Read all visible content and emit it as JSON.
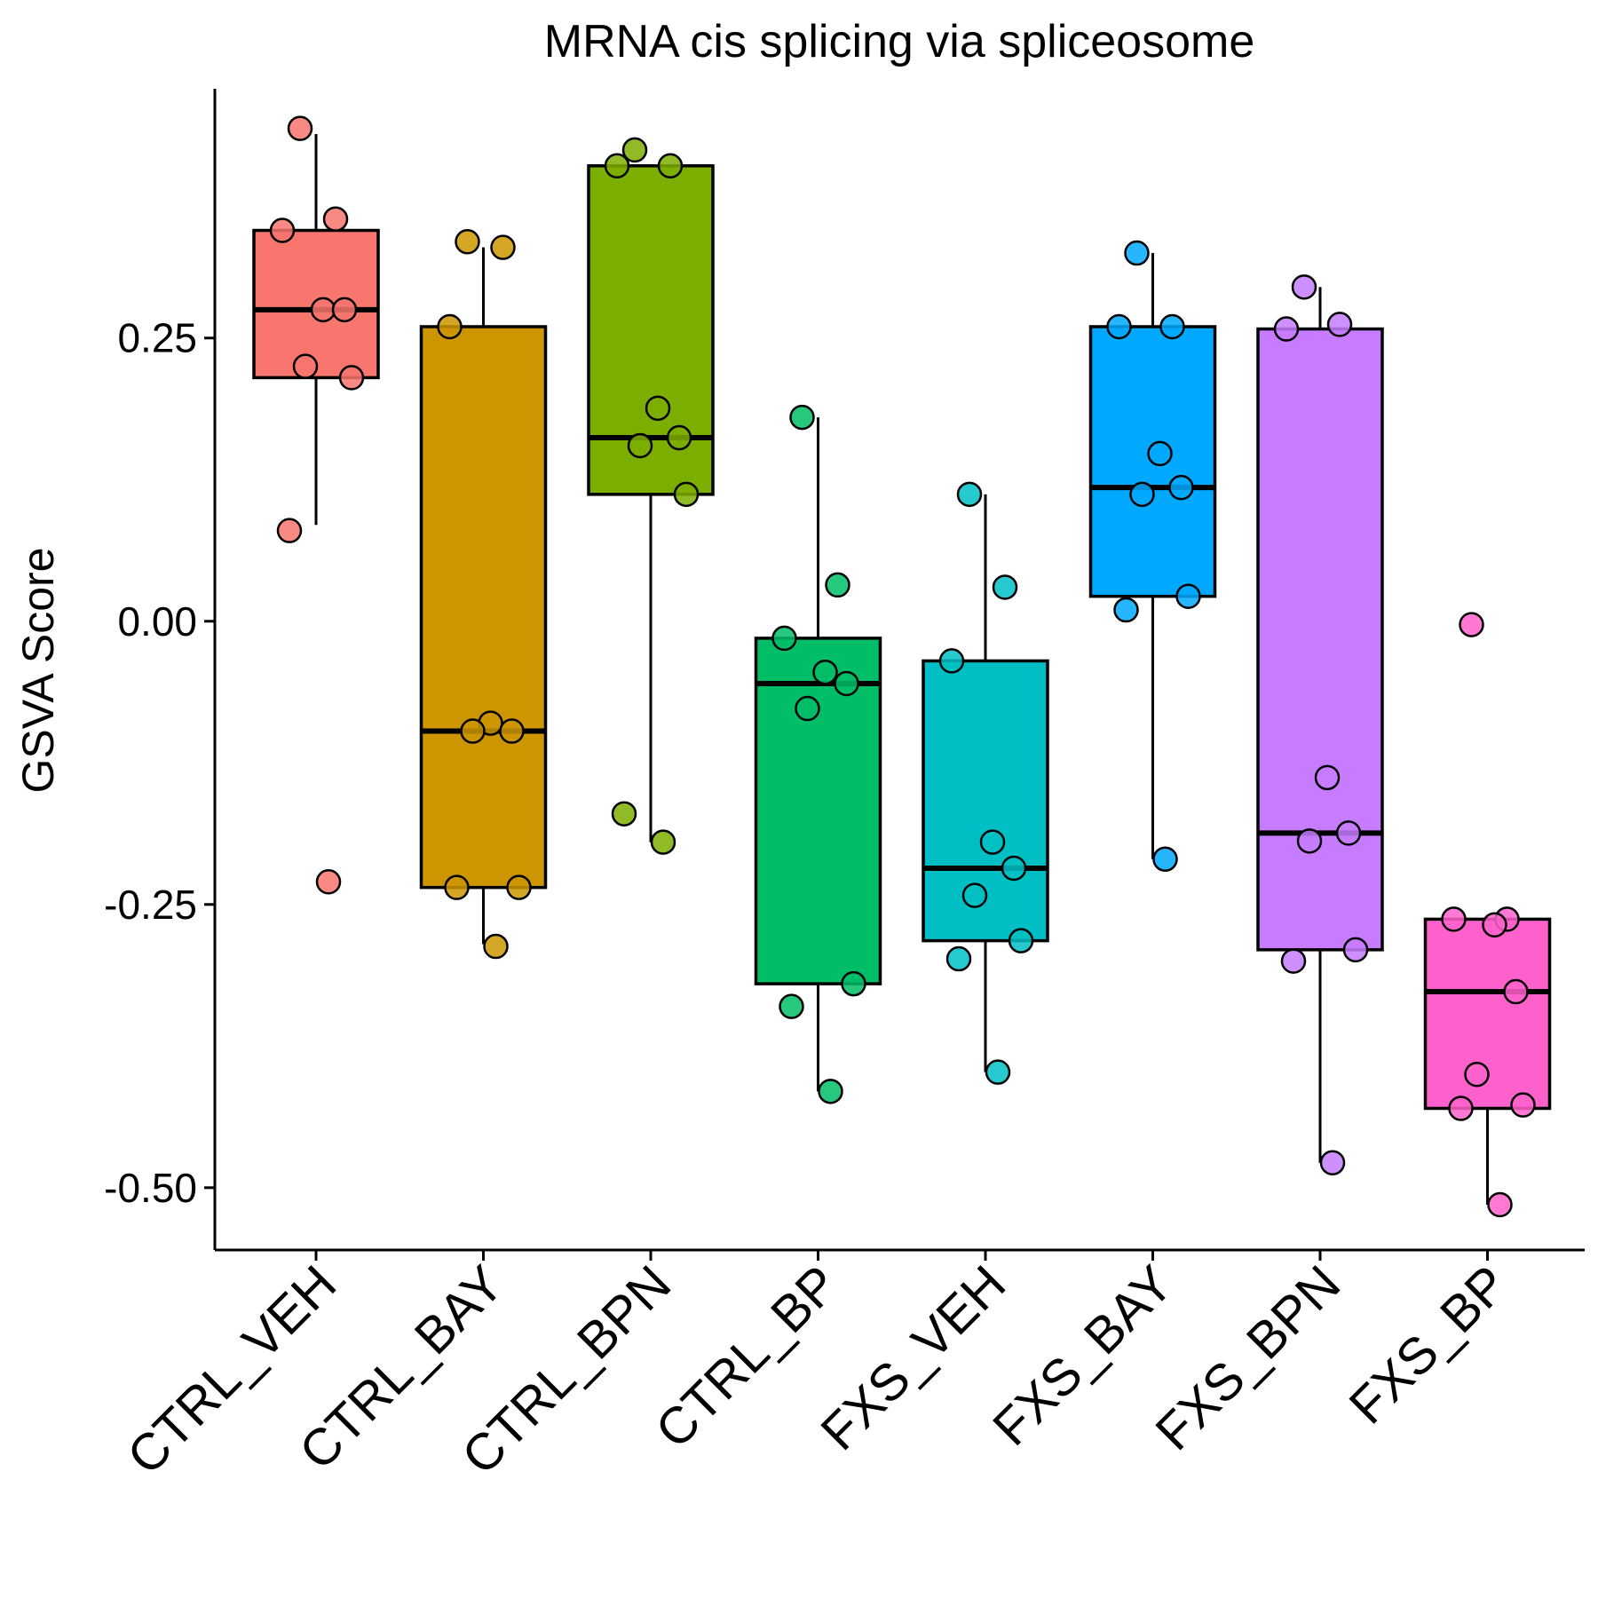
{
  "chart_data": {
    "type": "box",
    "title": "MRNA cis splicing via spliceosome",
    "xlabel": "",
    "ylabel": "GSVA Score",
    "ylim": [
      -0.555,
      0.47
    ],
    "yticks": [
      0.25,
      0.0,
      -0.25,
      -0.5
    ],
    "ytick_labels": [
      "0.25",
      "0.00",
      "-0.25",
      "-0.50"
    ],
    "legend": "none",
    "grid": false,
    "categories": [
      "CTRL_VEH",
      "CTRL_BAY",
      "CTRL_BPN",
      "CTRL_BP",
      "FXS_VEH",
      "FXS_BAY",
      "FXS_BPN",
      "FXS_BP"
    ],
    "colors": [
      "#F8766D",
      "#CD9600",
      "#7CAE00",
      "#00BE67",
      "#00BFC4",
      "#00A9FF",
      "#C77CFF",
      "#FF61CC"
    ],
    "series": [
      {
        "name": "CTRL_VEH",
        "box": {
          "whisker_low": 0.085,
          "q1": 0.215,
          "median": 0.275,
          "q3": 0.345,
          "whisker_high": 0.43
        },
        "points": [
          0.435,
          0.355,
          0.345,
          0.275,
          0.275,
          0.225,
          0.215,
          0.08,
          -0.23
        ]
      },
      {
        "name": "CTRL_BAY",
        "box": {
          "whisker_low": -0.285,
          "q1": -0.235,
          "median": -0.097,
          "q3": 0.26,
          "whisker_high": 0.33
        },
        "points": [
          0.335,
          0.33,
          0.26,
          -0.09,
          -0.097,
          -0.097,
          -0.235,
          -0.235,
          -0.287
        ]
      },
      {
        "name": "CTRL_BPN",
        "box": {
          "whisker_low": -0.195,
          "q1": 0.112,
          "median": 0.162,
          "q3": 0.402,
          "whisker_high": 0.402
        },
        "points": [
          0.416,
          0.402,
          0.402,
          0.188,
          0.162,
          0.155,
          0.112,
          -0.17,
          -0.195
        ]
      },
      {
        "name": "CTRL_BP",
        "box": {
          "whisker_low": -0.415,
          "q1": -0.32,
          "median": -0.055,
          "q3": -0.015,
          "whisker_high": 0.18
        },
        "points": [
          0.18,
          0.032,
          -0.015,
          -0.045,
          -0.055,
          -0.077,
          -0.32,
          -0.34,
          -0.415
        ]
      },
      {
        "name": "FXS_VEH",
        "box": {
          "whisker_low": -0.398,
          "q1": -0.282,
          "median": -0.218,
          "q3": -0.035,
          "whisker_high": 0.112
        },
        "points": [
          0.112,
          0.03,
          -0.035,
          -0.195,
          -0.218,
          -0.242,
          -0.282,
          -0.298,
          -0.398
        ]
      },
      {
        "name": "FXS_BAY",
        "box": {
          "whisker_low": -0.21,
          "q1": 0.022,
          "median": 0.118,
          "q3": 0.26,
          "whisker_high": 0.325
        },
        "points": [
          0.325,
          0.26,
          0.26,
          0.148,
          0.118,
          0.112,
          0.022,
          0.01,
          -0.21
        ]
      },
      {
        "name": "FXS_BPN",
        "box": {
          "whisker_low": -0.478,
          "q1": -0.29,
          "median": -0.187,
          "q3": 0.258,
          "whisker_high": 0.295
        },
        "points": [
          0.295,
          0.262,
          0.258,
          -0.138,
          -0.187,
          -0.194,
          -0.29,
          -0.3,
          -0.478
        ]
      },
      {
        "name": "FXS_BP",
        "box": {
          "whisker_low": -0.515,
          "q1": -0.43,
          "median": -0.327,
          "q3": -0.263,
          "whisker_high": -0.263
        },
        "points": [
          -0.003,
          -0.263,
          -0.263,
          -0.268,
          -0.327,
          -0.4,
          -0.427,
          -0.43,
          -0.515
        ]
      }
    ]
  }
}
